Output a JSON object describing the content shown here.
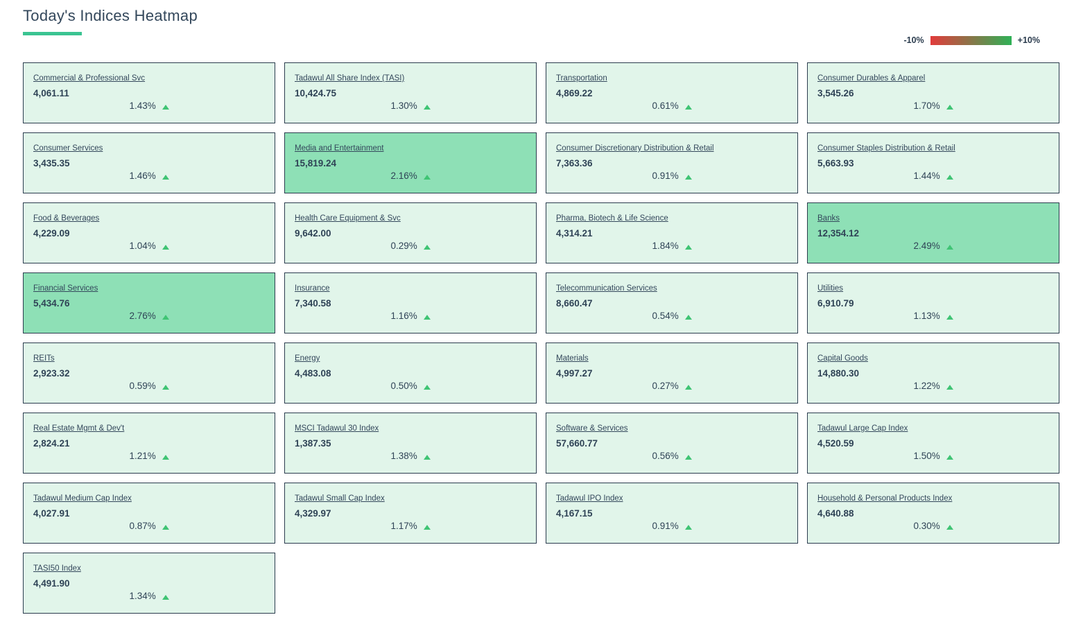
{
  "header": {
    "title": "Today's Indices Heatmap",
    "accent_color": "#3bc492"
  },
  "legend": {
    "min_label": "-10%",
    "max_label": "+10%",
    "gradient_from": "#e23b3b",
    "gradient_to": "#2fb156"
  },
  "colors": {
    "tile_light_green": "#e1f5ea",
    "tile_strong_green": "#8ee0b6",
    "tile_border": "#2b3c4e",
    "text": "#33475b",
    "up_arrow_green": "#3fc474"
  },
  "chart_data": {
    "type": "heatmap",
    "title": "Today's Indices Heatmap",
    "scale": {
      "min_label": "-10%",
      "max_label": "+10%",
      "min_color": "#e23b3b",
      "max_color": "#2fb156"
    },
    "tiles": [
      {
        "name": "Commercial & Professional Svc",
        "value": "4,061.11",
        "index_value": 4061.11,
        "change": "1.43%",
        "change_value": 1.43,
        "direction": "up",
        "bg": "#e1f5ea"
      },
      {
        "name": "Tadawul All Share Index (TASI)",
        "value": "10,424.75",
        "index_value": 10424.75,
        "change": "1.30%",
        "change_value": 1.3,
        "direction": "up",
        "bg": "#e1f5ea"
      },
      {
        "name": "Transportation",
        "value": "4,869.22",
        "index_value": 4869.22,
        "change": "0.61%",
        "change_value": 0.61,
        "direction": "up",
        "bg": "#e1f5ea"
      },
      {
        "name": "Consumer Durables & Apparel",
        "value": "3,545.26",
        "index_value": 3545.26,
        "change": "1.70%",
        "change_value": 1.7,
        "direction": "up",
        "bg": "#e1f5ea"
      },
      {
        "name": "Consumer Services",
        "value": "3,435.35",
        "index_value": 3435.35,
        "change": "1.46%",
        "change_value": 1.46,
        "direction": "up",
        "bg": "#e1f5ea"
      },
      {
        "name": "Media and Entertainment",
        "value": "15,819.24",
        "index_value": 15819.24,
        "change": "2.16%",
        "change_value": 2.16,
        "direction": "up",
        "bg": "#8ee0b6"
      },
      {
        "name": "Consumer Discretionary Distribution & Retail",
        "value": "7,363.36",
        "index_value": 7363.36,
        "change": "0.91%",
        "change_value": 0.91,
        "direction": "up",
        "bg": "#e1f5ea"
      },
      {
        "name": "Consumer Staples Distribution & Retail",
        "value": "5,663.93",
        "index_value": 5663.93,
        "change": "1.44%",
        "change_value": 1.44,
        "direction": "up",
        "bg": "#e1f5ea"
      },
      {
        "name": "Food & Beverages",
        "value": "4,229.09",
        "index_value": 4229.09,
        "change": "1.04%",
        "change_value": 1.04,
        "direction": "up",
        "bg": "#e1f5ea"
      },
      {
        "name": "Health Care Equipment & Svc",
        "value": "9,642.00",
        "index_value": 9642.0,
        "change": "0.29%",
        "change_value": 0.29,
        "direction": "up",
        "bg": "#e1f5ea"
      },
      {
        "name": "Pharma, Biotech & Life Science",
        "value": "4,314.21",
        "index_value": 4314.21,
        "change": "1.84%",
        "change_value": 1.84,
        "direction": "up",
        "bg": "#e1f5ea"
      },
      {
        "name": "Banks",
        "value": "12,354.12",
        "index_value": 12354.12,
        "change": "2.49%",
        "change_value": 2.49,
        "direction": "up",
        "bg": "#8ee0b6"
      },
      {
        "name": "Financial Services",
        "value": "5,434.76",
        "index_value": 5434.76,
        "change": "2.76%",
        "change_value": 2.76,
        "direction": "up",
        "bg": "#8ee0b6"
      },
      {
        "name": "Insurance",
        "value": "7,340.58",
        "index_value": 7340.58,
        "change": "1.16%",
        "change_value": 1.16,
        "direction": "up",
        "bg": "#e1f5ea"
      },
      {
        "name": "Telecommunication Services",
        "value": "8,660.47",
        "index_value": 8660.47,
        "change": "0.54%",
        "change_value": 0.54,
        "direction": "up",
        "bg": "#e1f5ea"
      },
      {
        "name": "Utilities",
        "value": "6,910.79",
        "index_value": 6910.79,
        "change": "1.13%",
        "change_value": 1.13,
        "direction": "up",
        "bg": "#e1f5ea"
      },
      {
        "name": "REITs",
        "value": "2,923.32",
        "index_value": 2923.32,
        "change": "0.59%",
        "change_value": 0.59,
        "direction": "up",
        "bg": "#e1f5ea"
      },
      {
        "name": "Energy",
        "value": "4,483.08",
        "index_value": 4483.08,
        "change": "0.50%",
        "change_value": 0.5,
        "direction": "up",
        "bg": "#e1f5ea"
      },
      {
        "name": "Materials",
        "value": "4,997.27",
        "index_value": 4997.27,
        "change": "0.27%",
        "change_value": 0.27,
        "direction": "up",
        "bg": "#e1f5ea"
      },
      {
        "name": "Capital Goods",
        "value": "14,880.30",
        "index_value": 14880.3,
        "change": "1.22%",
        "change_value": 1.22,
        "direction": "up",
        "bg": "#e1f5ea"
      },
      {
        "name": "Real Estate Mgmt & Dev't",
        "value": "2,824.21",
        "index_value": 2824.21,
        "change": "1.21%",
        "change_value": 1.21,
        "direction": "up",
        "bg": "#e1f5ea"
      },
      {
        "name": "MSCI Tadawul 30 Index",
        "value": "1,387.35",
        "index_value": 1387.35,
        "change": "1.38%",
        "change_value": 1.38,
        "direction": "up",
        "bg": "#e1f5ea"
      },
      {
        "name": "Software & Services",
        "value": "57,660.77",
        "index_value": 57660.77,
        "change": "0.56%",
        "change_value": 0.56,
        "direction": "up",
        "bg": "#e1f5ea"
      },
      {
        "name": "Tadawul Large Cap Index",
        "value": "4,520.59",
        "index_value": 4520.59,
        "change": "1.50%",
        "change_value": 1.5,
        "direction": "up",
        "bg": "#e1f5ea"
      },
      {
        "name": "Tadawul Medium Cap Index",
        "value": "4,027.91",
        "index_value": 4027.91,
        "change": "0.87%",
        "change_value": 0.87,
        "direction": "up",
        "bg": "#e1f5ea"
      },
      {
        "name": "Tadawul Small Cap Index",
        "value": "4,329.97",
        "index_value": 4329.97,
        "change": "1.17%",
        "change_value": 1.17,
        "direction": "up",
        "bg": "#e1f5ea"
      },
      {
        "name": "Tadawul IPO Index",
        "value": "4,167.15",
        "index_value": 4167.15,
        "change": "0.91%",
        "change_value": 0.91,
        "direction": "up",
        "bg": "#e1f5ea"
      },
      {
        "name": "Household & Personal Products Index",
        "value": "4,640.88",
        "index_value": 4640.88,
        "change": "0.30%",
        "change_value": 0.3,
        "direction": "up",
        "bg": "#e1f5ea"
      },
      {
        "name": "TASI50 Index",
        "value": "4,491.90",
        "index_value": 4491.9,
        "change": "1.34%",
        "change_value": 1.34,
        "direction": "up",
        "bg": "#e1f5ea"
      }
    ]
  }
}
